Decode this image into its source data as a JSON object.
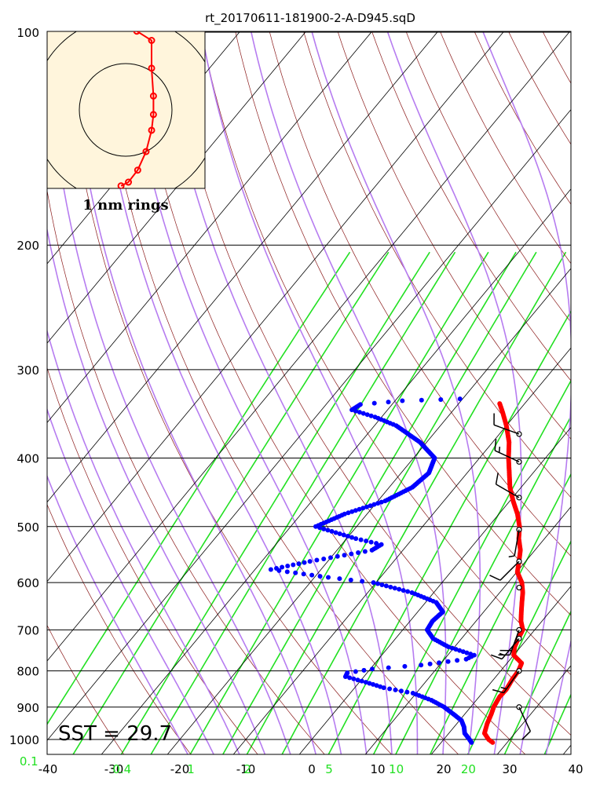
{
  "colors": {
    "isobar": "#000000",
    "isotherm": "#000000",
    "dry_adiabat": "#8b1a1a",
    "moist_adiabat": "#b67cf0",
    "mixing_ratio": "#22e022",
    "temperature": "#ff0000",
    "dewpoint": "#0000ff",
    "inset_bg": "#fff5dc",
    "mixing_label": "#22e022"
  },
  "chart_data": {
    "type": "skew-t log-p",
    "title": "rt_20170611-181900-2-A-D945.sqD",
    "pressure_ticks": [
      "100",
      "200",
      "300",
      "400",
      "500",
      "600",
      "700",
      "800",
      "900",
      "1000"
    ],
    "pressure_levels": [
      100,
      200,
      300,
      400,
      500,
      600,
      700,
      800,
      900,
      1000
    ],
    "ylim_hpa": [
      1050,
      100
    ],
    "xlim_c": [
      -40,
      40
    ],
    "temp_ticks": [
      "-40",
      "-30",
      "-20",
      "-10",
      "0",
      "10",
      "20",
      "30",
      "40"
    ],
    "temp_tick_values": [
      -40,
      -30,
      -20,
      -10,
      0,
      10,
      20,
      30,
      40
    ],
    "mixing_ratio_ticks": [
      "0.1",
      "0.4",
      "1",
      "2",
      "5",
      "10",
      "20"
    ],
    "mixing_ratio_values": [
      0.1,
      0.4,
      1,
      2,
      5,
      10,
      20
    ],
    "sst_label": "SST = 29.7",
    "inset_label": "1 nm rings",
    "temperature": [
      [
        1010,
        27.8
      ],
      [
        1000,
        26.8
      ],
      [
        980,
        25.4
      ],
      [
        950,
        24.6
      ],
      [
        920,
        24.0
      ],
      [
        900,
        23.5
      ],
      [
        870,
        23.1
      ],
      [
        850,
        23.2
      ],
      [
        820,
        22.8
      ],
      [
        800,
        22.7
      ],
      [
        780,
        22.2
      ],
      [
        760,
        20.0
      ],
      [
        740,
        19.1
      ],
      [
        720,
        18.6
      ],
      [
        700,
        18.2
      ],
      [
        680,
        16.8
      ],
      [
        660,
        15.7
      ],
      [
        640,
        14.6
      ],
      [
        620,
        13.5
      ],
      [
        600,
        12.1
      ],
      [
        580,
        10.1
      ],
      [
        560,
        9.0
      ],
      [
        540,
        7.8
      ],
      [
        520,
        6.1
      ],
      [
        500,
        4.7
      ],
      [
        480,
        2.8
      ],
      [
        460,
        0.5
      ],
      [
        440,
        -1.7
      ],
      [
        420,
        -3.6
      ],
      [
        400,
        -5.6
      ],
      [
        380,
        -7.5
      ],
      [
        360,
        -10.0
      ],
      [
        345,
        -12.2
      ],
      [
        335,
        -13.8
      ]
    ],
    "dewpoint": [
      [
        1010,
        24.6
      ],
      [
        1000,
        23.9
      ],
      [
        980,
        22.4
      ],
      [
        960,
        21.5
      ],
      [
        940,
        20.3
      ],
      [
        920,
        18.2
      ],
      [
        900,
        16.0
      ],
      [
        880,
        13.2
      ],
      [
        860,
        9.5
      ],
      [
        845,
        4.4
      ],
      [
        830,
        1.0
      ],
      [
        815,
        -2.8
      ],
      [
        805,
        -3.0
      ],
      [
        795,
        0.3
      ],
      [
        785,
        7.2
      ],
      [
        770,
        13.3
      ],
      [
        760,
        14.0
      ],
      [
        740,
        9.1
      ],
      [
        720,
        5.7
      ],
      [
        700,
        3.7
      ],
      [
        680,
        3.4
      ],
      [
        660,
        3.8
      ],
      [
        640,
        1.6
      ],
      [
        620,
        -3.3
      ],
      [
        600,
        -10.4
      ],
      [
        590,
        -17.9
      ],
      [
        575,
        -27.6
      ],
      [
        560,
        -22.7
      ],
      [
        540,
        -14.7
      ],
      [
        530,
        -14.0
      ],
      [
        520,
        -18.6
      ],
      [
        500,
        -26.2
      ],
      [
        480,
        -23.4
      ],
      [
        460,
        -18.9
      ],
      [
        440,
        -16.5
      ],
      [
        420,
        -15.8
      ],
      [
        400,
        -16.8
      ],
      [
        380,
        -21.0
      ],
      [
        360,
        -26.7
      ],
      [
        350,
        -31.0
      ],
      [
        342,
        -35.4
      ],
      [
        336,
        -34.8
      ],
      [
        332,
        -28.9
      ],
      [
        330,
        -20.4
      ]
    ],
    "wind_barbs": [
      {
        "p": 370,
        "dir": 290,
        "speed": 10
      },
      {
        "p": 405,
        "dir": 295,
        "speed": 15
      },
      {
        "p": 455,
        "dir": 300,
        "speed": 10
      },
      {
        "p": 505,
        "dir": 190,
        "speed": 5
      },
      {
        "p": 560,
        "dir": 225,
        "speed": 10
      },
      {
        "p": 610,
        "dir": 180,
        "speed": 0
      },
      {
        "p": 700,
        "dir": 200,
        "speed": 20
      },
      {
        "p": 720,
        "dir": 220,
        "speed": 15
      },
      {
        "p": 800,
        "dir": 215,
        "speed": 15
      },
      {
        "p": 900,
        "dir": 155,
        "speed": 10
      }
    ],
    "hodograph_track": [
      [
        -0.05,
        0.95
      ],
      [
        0.12,
        0.85
      ],
      [
        0.28,
        0.75
      ],
      [
        0.28,
        0.45
      ],
      [
        0.3,
        0.15
      ],
      [
        0.3,
        -0.05
      ],
      [
        0.28,
        -0.22
      ],
      [
        0.22,
        -0.45
      ],
      [
        0.13,
        -0.65
      ],
      [
        0.03,
        -0.78
      ],
      [
        -0.05,
        -0.82
      ]
    ]
  }
}
